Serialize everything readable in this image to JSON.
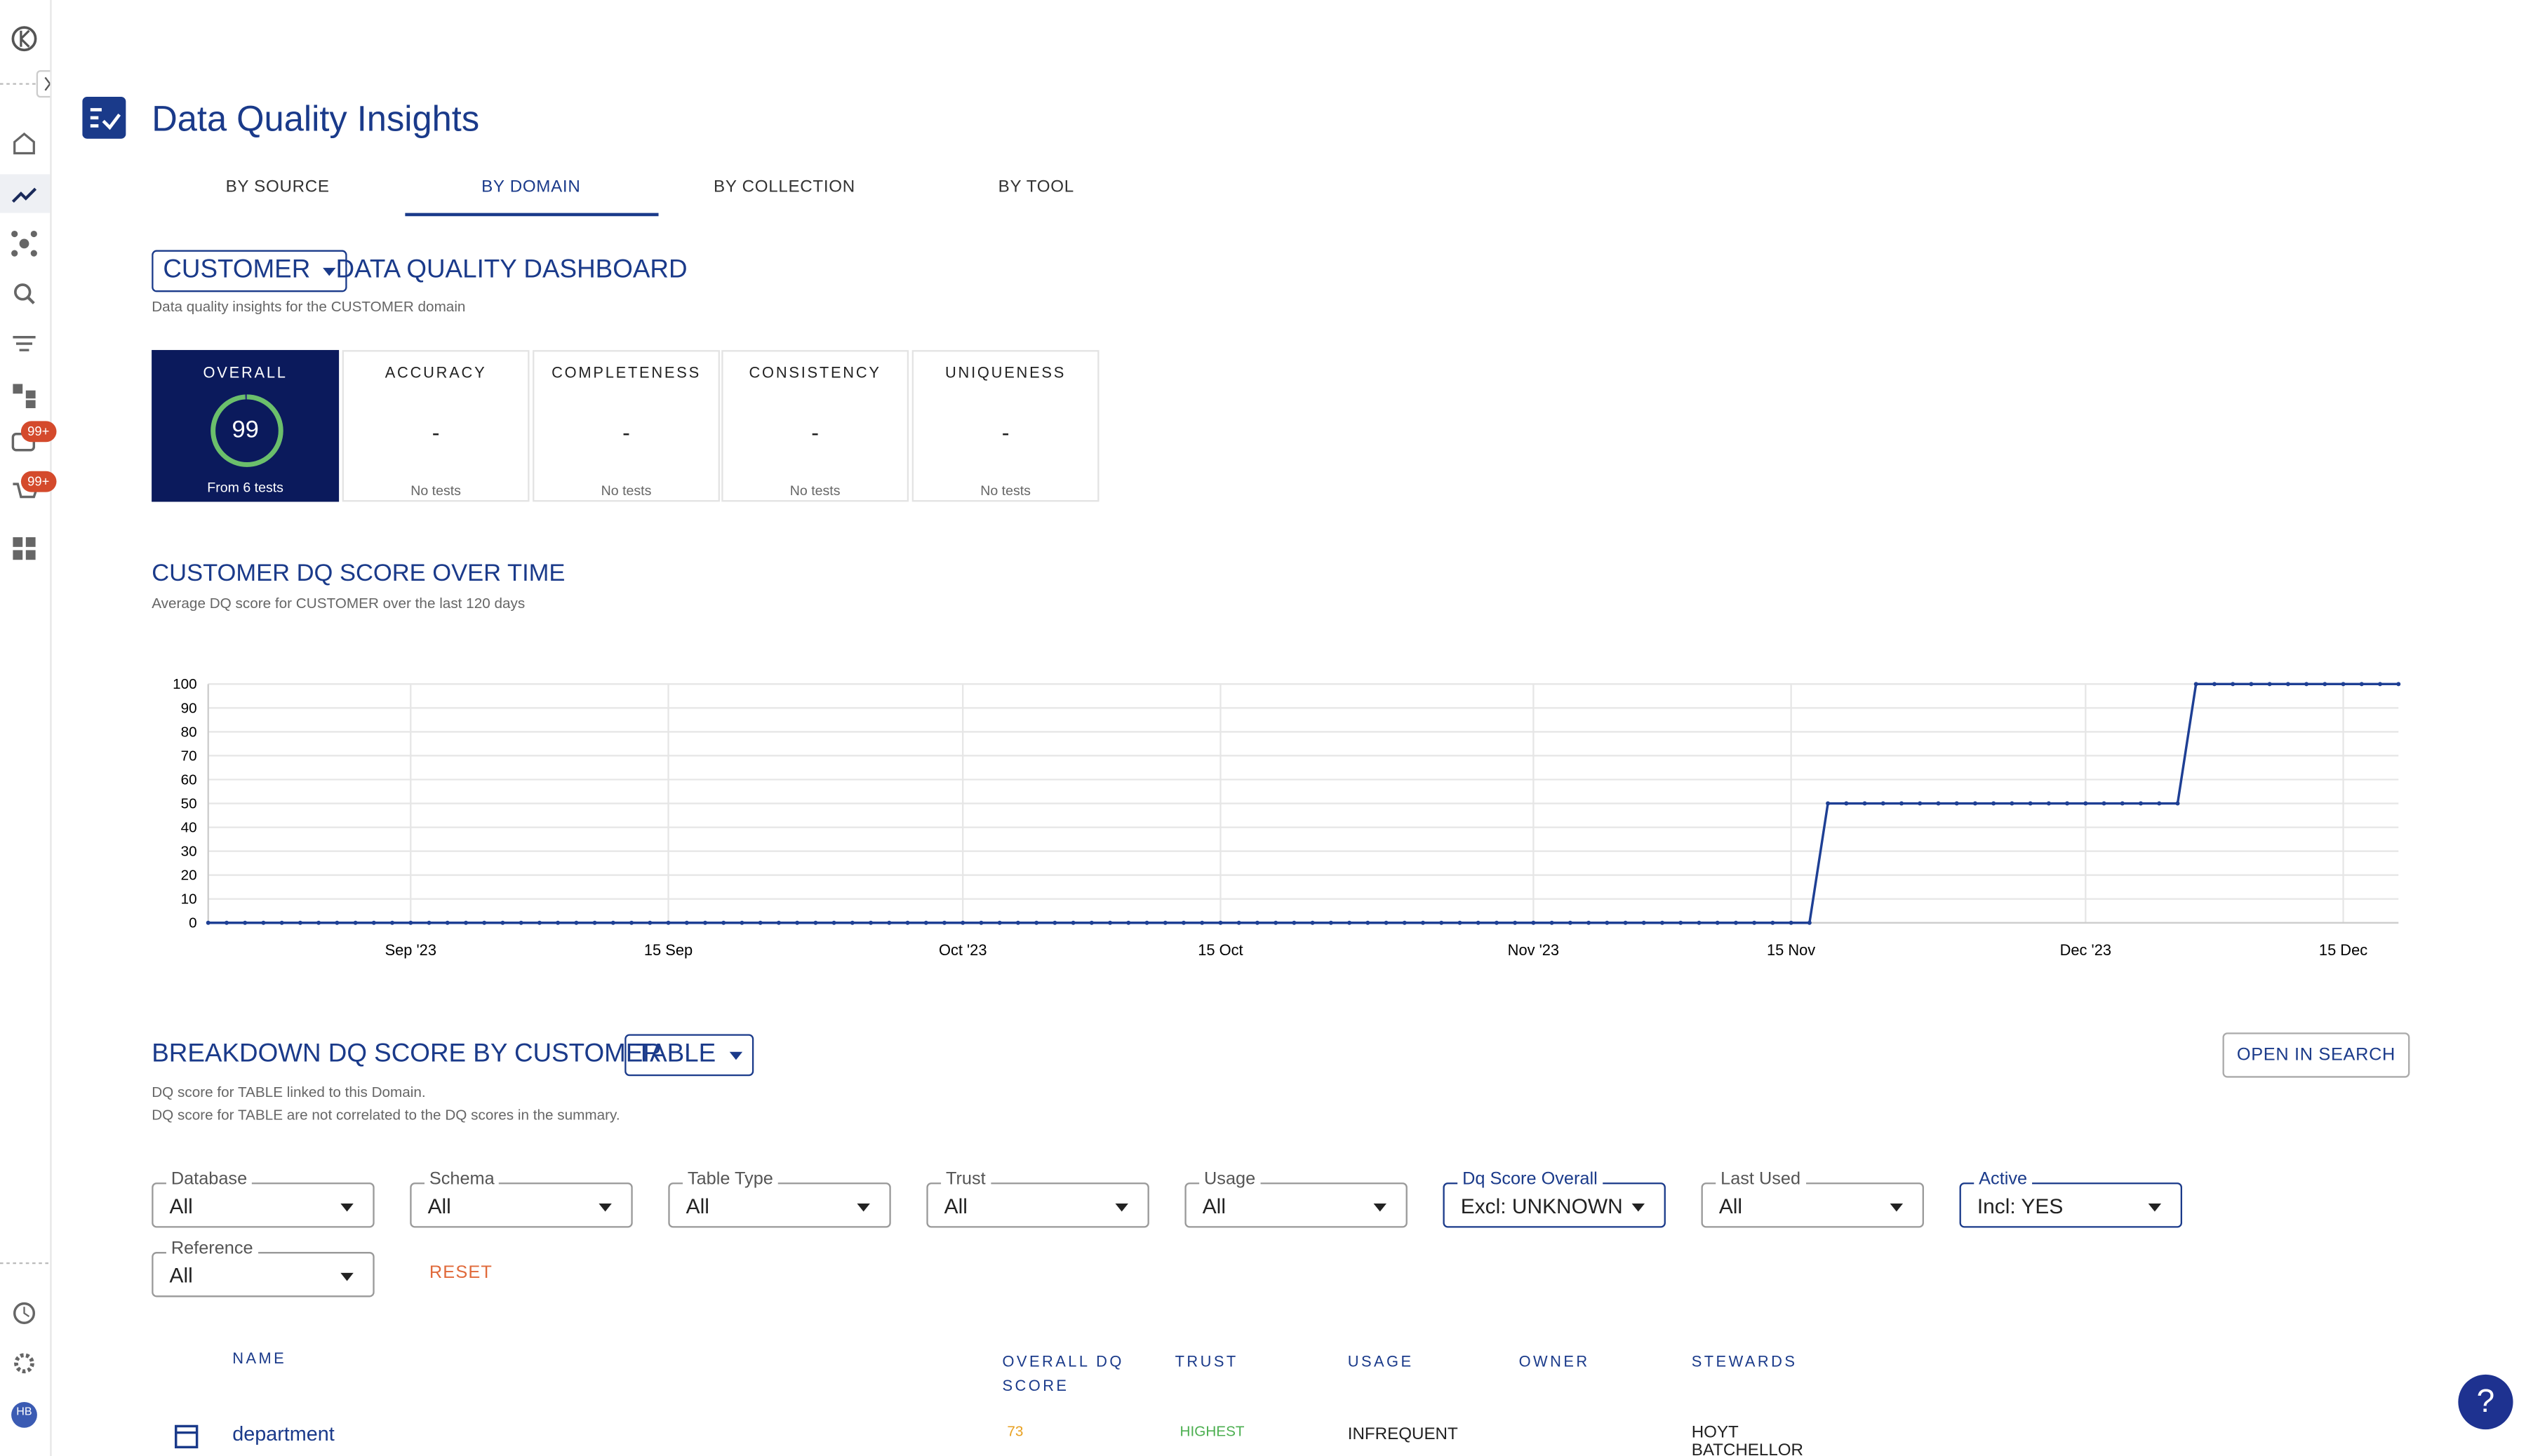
{
  "sidebar": {
    "badges": [
      "99+",
      "99+"
    ],
    "avatar": "HB"
  },
  "header": {
    "title": "Data Quality Insights"
  },
  "tabs": [
    "BY SOURCE",
    "BY DOMAIN",
    "BY COLLECTION",
    "BY TOOL"
  ],
  "dashboard": {
    "domain": "CUSTOMER",
    "title": "DATA QUALITY DASHBOARD",
    "subtitle": "Data quality insights for the CUSTOMER domain",
    "cards": [
      {
        "label": "OVERALL",
        "value": 99,
        "note": "From 6 tests"
      },
      {
        "label": "ACCURACY",
        "value": "-",
        "note": "No tests"
      },
      {
        "label": "COMPLETENESS",
        "value": "-",
        "note": "No tests"
      },
      {
        "label": "CONSISTENCY",
        "value": "-",
        "note": "No tests"
      },
      {
        "label": "UNIQUENESS",
        "value": "-",
        "note": "No tests"
      }
    ]
  },
  "chart_data": {
    "type": "line",
    "title": "CUSTOMER DQ SCORE OVER TIME",
    "subtitle": "Average DQ score for CUSTOMER over the last 120 days",
    "x": [
      "2023-08-21",
      "2023-08-22",
      "2023-08-23",
      "2023-08-24",
      "2023-08-25",
      "2023-08-26",
      "2023-08-27",
      "2023-08-28",
      "2023-08-29",
      "2023-08-30",
      "2023-08-31",
      "2023-09-01",
      "2023-09-02",
      "2023-09-03",
      "2023-09-04",
      "2023-09-05",
      "2023-09-06",
      "2023-09-07",
      "2023-09-08",
      "2023-09-09",
      "2023-09-10",
      "2023-09-11",
      "2023-09-12",
      "2023-09-13",
      "2023-09-14",
      "2023-09-15",
      "2023-09-16",
      "2023-09-17",
      "2023-09-18",
      "2023-09-19",
      "2023-09-20",
      "2023-09-21",
      "2023-09-22",
      "2023-09-23",
      "2023-09-24",
      "2023-09-25",
      "2023-09-26",
      "2023-09-27",
      "2023-09-28",
      "2023-09-29",
      "2023-09-30",
      "2023-10-01",
      "2023-10-02",
      "2023-10-03",
      "2023-10-04",
      "2023-10-05",
      "2023-10-06",
      "2023-10-07",
      "2023-10-08",
      "2023-10-09",
      "2023-10-10",
      "2023-10-11",
      "2023-10-12",
      "2023-10-13",
      "2023-10-14",
      "2023-10-15",
      "2023-10-16",
      "2023-10-17",
      "2023-10-18",
      "2023-10-19",
      "2023-10-20",
      "2023-10-21",
      "2023-10-22",
      "2023-10-23",
      "2023-10-24",
      "2023-10-25",
      "2023-10-26",
      "2023-10-27",
      "2023-10-28",
      "2023-10-29",
      "2023-10-30",
      "2023-10-31",
      "2023-11-01",
      "2023-11-02",
      "2023-11-03",
      "2023-11-04",
      "2023-11-05",
      "2023-11-06",
      "2023-11-07",
      "2023-11-08",
      "2023-11-09",
      "2023-11-10",
      "2023-11-11",
      "2023-11-12",
      "2023-11-13",
      "2023-11-14",
      "2023-11-15",
      "2023-11-16",
      "2023-11-17",
      "2023-11-18",
      "2023-11-19",
      "2023-11-20",
      "2023-11-21",
      "2023-11-22",
      "2023-11-23",
      "2023-11-24",
      "2023-11-25",
      "2023-11-26",
      "2023-11-27",
      "2023-11-28",
      "2023-11-29",
      "2023-11-30",
      "2023-12-01",
      "2023-12-02",
      "2023-12-03",
      "2023-12-04",
      "2023-12-05",
      "2023-12-06",
      "2023-12-07",
      "2023-12-08",
      "2023-12-09",
      "2023-12-10",
      "2023-12-11",
      "2023-12-12",
      "2023-12-13",
      "2023-12-14",
      "2023-12-15",
      "2023-12-16",
      "2023-12-17",
      "2023-12-18"
    ],
    "series": [
      {
        "name": "DQ score",
        "color": "#1e3f94",
        "values": [
          0,
          0,
          0,
          0,
          0,
          0,
          0,
          0,
          0,
          0,
          0,
          0,
          0,
          0,
          0,
          0,
          0,
          0,
          0,
          0,
          0,
          0,
          0,
          0,
          0,
          0,
          0,
          0,
          0,
          0,
          0,
          0,
          0,
          0,
          0,
          0,
          0,
          0,
          0,
          0,
          0,
          0,
          0,
          0,
          0,
          0,
          0,
          0,
          0,
          0,
          0,
          0,
          0,
          0,
          0,
          0,
          0,
          0,
          0,
          0,
          0,
          0,
          0,
          0,
          0,
          0,
          0,
          0,
          0,
          0,
          0,
          0,
          0,
          0,
          0,
          0,
          0,
          0,
          0,
          0,
          0,
          0,
          0,
          0,
          0,
          0,
          0,
          0,
          50,
          50,
          50,
          50,
          50,
          50,
          50,
          50,
          50,
          50,
          50,
          50,
          50,
          50,
          50,
          50,
          50,
          50,
          50,
          50,
          100,
          100,
          100,
          100,
          100,
          100,
          100,
          100,
          100,
          100,
          100,
          100
        ]
      }
    ],
    "xlim": [
      "2023-08-21",
      "2023-12-18"
    ],
    "xticks": [
      {
        "value": "2023-09-01",
        "label": "Sep '23"
      },
      {
        "value": "2023-09-15",
        "label": "15 Sep"
      },
      {
        "value": "2023-10-01",
        "label": "Oct '23"
      },
      {
        "value": "2023-10-15",
        "label": "15 Oct"
      },
      {
        "value": "2023-11-01",
        "label": "Nov '23"
      },
      {
        "value": "2023-11-15",
        "label": "15 Nov"
      },
      {
        "value": "2023-12-01",
        "label": "Dec '23"
      },
      {
        "value": "2023-12-15",
        "label": "15 Dec"
      }
    ],
    "ylim": [
      0,
      100
    ],
    "yticks": [
      0,
      10,
      20,
      30,
      40,
      50,
      60,
      70,
      80,
      90,
      100
    ],
    "grid": true
  },
  "breakdown": {
    "title": "BREAKDOWN DQ SCORE BY CUSTOMER",
    "selector": "TABLE",
    "button": "OPEN IN SEARCH",
    "notes": [
      "DQ score for TABLE linked to this Domain.",
      "DQ score for TABLE are not correlated to the DQ scores in the summary."
    ],
    "filters": [
      {
        "label": "Database",
        "value": "All"
      },
      {
        "label": "Schema",
        "value": "All"
      },
      {
        "label": "Table Type",
        "value": "All"
      },
      {
        "label": "Trust",
        "value": "All"
      },
      {
        "label": "Usage",
        "value": "All"
      },
      {
        "label": "Dq Score Overall",
        "value": "Excl: UNKNOWN",
        "active": true
      },
      {
        "label": "Last Used",
        "value": "All"
      },
      {
        "label": "Active",
        "value": "Incl: YES",
        "active": true
      },
      {
        "label": "Reference",
        "value": "All"
      }
    ],
    "reset": "RESET",
    "columns": [
      "NAME",
      "OVERALL DQ SCORE",
      "TRUST",
      "USAGE",
      "OWNER",
      "STEWARDS"
    ],
    "rows": [
      {
        "name": "department",
        "score": 73,
        "trust": "HIGHEST",
        "usage": "INFREQUENT",
        "stewards": "HOYT BATCHELLOR"
      }
    ]
  },
  "help": "?"
}
